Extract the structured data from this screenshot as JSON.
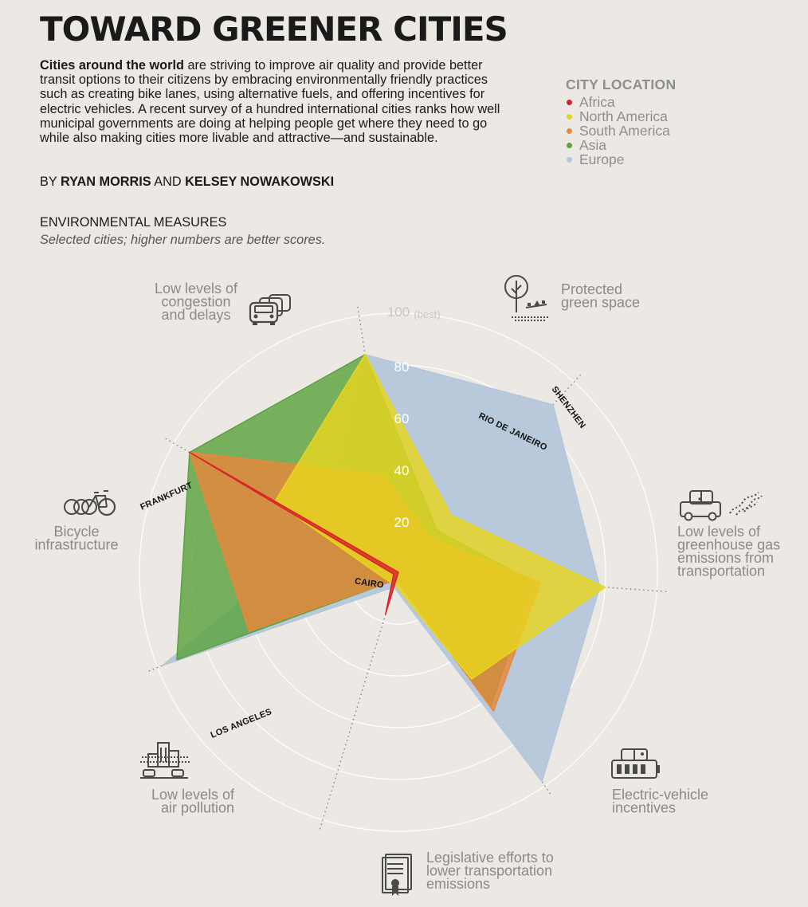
{
  "page": {
    "title": "TOWARD GREENER CITIES",
    "intro_lead": "Cities around the world",
    "intro_rest": " are striving to improve air quality and provide better transit options to their citizens by embracing environmentally friendly practices such as creating bike lanes, using alternative fuels, and offering incentives for electric vehicles. A recent survey of a hundred international cities ranks how well municipal governments are doing at helping people get where they need to go while also making cities more livable and attractive—and sustainable.",
    "byline_prefix": "BY ",
    "author1": "RYAN MORRIS",
    "byline_and": " AND ",
    "author2": "KELSEY NOWAKOWSKI",
    "section_title": "ENVIRONMENTAL MEASURES",
    "section_subtitle": "Selected cities; higher numbers are better scores."
  },
  "legend": {
    "title": "CITY LOCATION",
    "items": [
      {
        "label": "Africa",
        "color": "#D8232A"
      },
      {
        "label": "North America",
        "color": "#E8D61E"
      },
      {
        "label": "South America",
        "color": "#E8883A"
      },
      {
        "label": "Asia",
        "color": "#5BA33F"
      },
      {
        "label": "Europe",
        "color": "#B3C6DB"
      }
    ]
  },
  "icons": [
    "congestion-cars-icon",
    "green-space-tree-icon",
    "greenhouse-gas-car-icon",
    "electric-vehicle-battery-icon",
    "legislation-document-icon",
    "air-pollution-city-icon",
    "bicycle-icon"
  ],
  "chart_data": {
    "type": "radar",
    "title": "ENVIRONMENTAL MEASURES",
    "subtitle": "Selected cities; higher numbers are better scores.",
    "range": [
      0,
      100
    ],
    "ticks": [
      20,
      40,
      60,
      80,
      100
    ],
    "tick_labels": [
      "20",
      "40",
      "60",
      "80",
      "100"
    ],
    "max_annotation": "(best)",
    "axes": [
      {
        "lines": [
          "Low levels of",
          "congestion",
          "and delays"
        ]
      },
      {
        "lines": [
          "Protected",
          "green space"
        ]
      },
      {
        "lines": [
          "Low levels of",
          "greenhouse gas",
          "emissions from",
          "transportation"
        ]
      },
      {
        "lines": [
          "Electric-vehicle",
          "incentives"
        ]
      },
      {
        "lines": [
          "Legislative efforts to",
          "lower transportation",
          "emissions"
        ]
      },
      {
        "lines": [
          "Low levels of",
          "air pollution"
        ]
      },
      {
        "lines": [
          "Bicycle",
          "infrastructure"
        ]
      }
    ],
    "series": [
      {
        "name": "FRANKFURT",
        "region": "Europe",
        "color": "#B3C6DB",
        "values": [
          6,
          98,
          32,
          85,
          88,
          78,
          98
        ]
      },
      {
        "name": "SHENZHEN",
        "region": "Asia",
        "color": "#5BA33F",
        "values": [
          3,
          92,
          93,
          85,
          22,
          52,
          63
        ]
      },
      {
        "name": "RIO DE JANEIRO",
        "region": "South America",
        "color": "#E8883A",
        "values": [
          3,
          62,
          93,
          38,
          18,
          55,
          65
        ]
      },
      {
        "name": "LOS ANGELES",
        "region": "North America",
        "color": "#E8D61E",
        "values": [
          5,
          6,
          55,
          85,
          30,
          80,
          50
        ]
      },
      {
        "name": "CAIRO",
        "region": "Africa",
        "color": "#D8232A",
        "values": [
          17,
          2,
          93,
          0,
          0,
          0,
          0
        ]
      }
    ]
  }
}
